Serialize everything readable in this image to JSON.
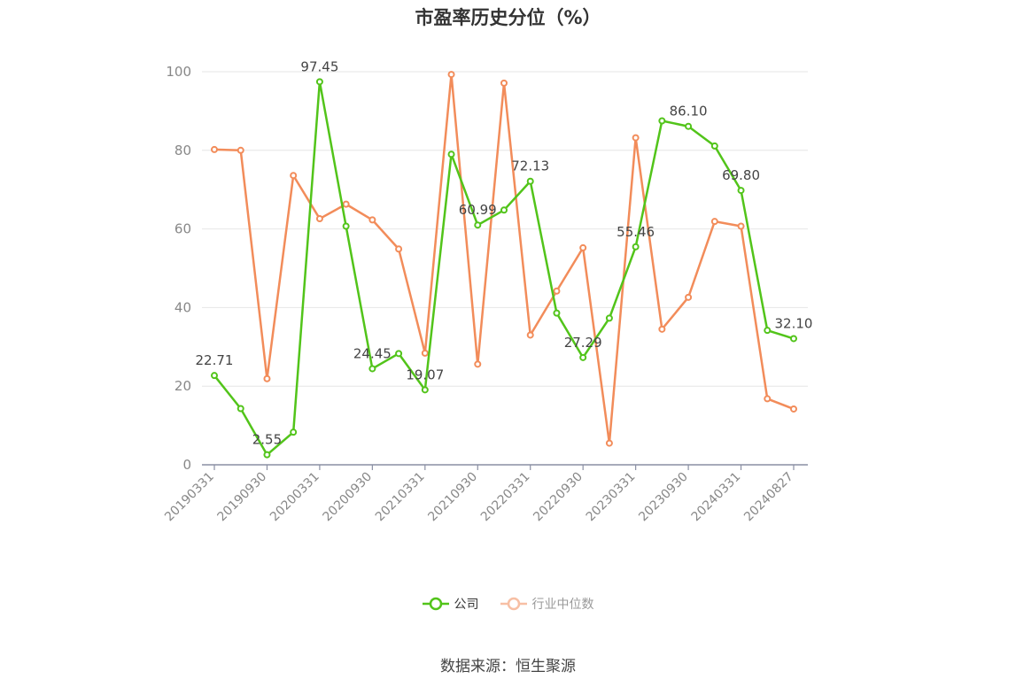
{
  "chart_data": {
    "type": "line",
    "title": "市盈率历史分位（%）",
    "xlabel": "",
    "ylabel": "",
    "ylim": [
      0,
      100
    ],
    "yticks": [
      0,
      20,
      40,
      60,
      80,
      100
    ],
    "grid": true,
    "legend_position": "bottom",
    "x": [
      "20190331",
      "20190630",
      "20190930",
      "20191231",
      "20200331",
      "20200630",
      "20200930",
      "20201231",
      "20210331",
      "20210630",
      "20210930",
      "20211231",
      "20220331",
      "20220630",
      "20220930",
      "20221231",
      "20230331",
      "20230630",
      "20230930",
      "20231231",
      "20240331",
      "20240630",
      "20240827"
    ],
    "x_tick_labels": [
      "20190331",
      "20190930",
      "20200331",
      "20200930",
      "20210331",
      "20210930",
      "20220331",
      "20220930",
      "20230331",
      "20230930",
      "20240331",
      "20240827"
    ],
    "series": [
      {
        "name": "公司",
        "color": "#52c41a",
        "values": [
          22.71,
          14.3,
          2.55,
          8.3,
          97.45,
          60.7,
          24.45,
          28.3,
          19.07,
          79.0,
          60.99,
          64.8,
          72.13,
          38.6,
          27.29,
          37.3,
          55.46,
          87.5,
          86.1,
          81.1,
          69.8,
          34.2,
          32.1
        ],
        "labels": [
          "22.71",
          null,
          "2.55",
          null,
          "97.45",
          null,
          "24.45",
          null,
          "19.07",
          null,
          "60.99",
          null,
          "72.13",
          null,
          "27.29",
          null,
          "55.46",
          null,
          "86.10",
          null,
          "69.80",
          null,
          "32.10"
        ]
      },
      {
        "name": "行业中位数",
        "color": "#f28c5a",
        "values": [
          80.2,
          80.0,
          21.9,
          73.6,
          62.6,
          66.3,
          62.3,
          54.9,
          28.4,
          99.3,
          25.6,
          97.1,
          33.0,
          44.2,
          55.2,
          5.5,
          83.2,
          34.5,
          42.6,
          61.9,
          60.7,
          16.8,
          14.2
        ]
      }
    ]
  },
  "source_text": "数据来源：恒生聚源"
}
